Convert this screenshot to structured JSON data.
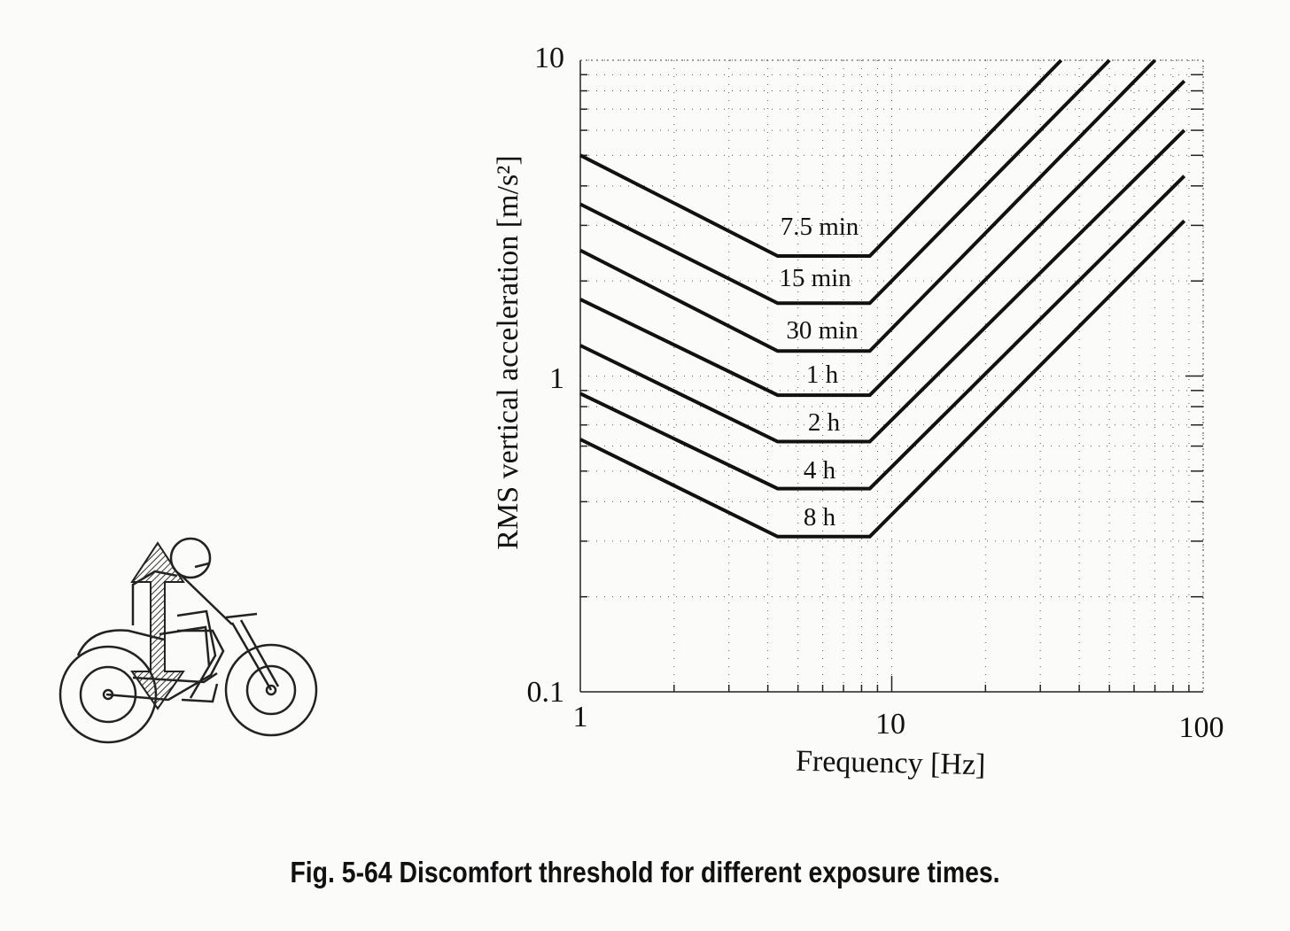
{
  "caption": "Fig. 5-64 Discomfort threshold for different exposure times.",
  "chart_data": {
    "type": "line",
    "title": "",
    "xlabel": "Frequency [Hz]",
    "ylabel": "RMS vertical acceleration [m/s²]",
    "xscale": "log",
    "yscale": "log",
    "xlim": [
      1,
      100
    ],
    "ylim": [
      0.1,
      10
    ],
    "xticks": [
      1,
      10,
      100
    ],
    "yticks": [
      0.1,
      1,
      10
    ],
    "xtick_labels": [
      "1",
      "10",
      "100"
    ],
    "ytick_labels": [
      "0.1",
      "1",
      "10"
    ],
    "grid": true,
    "legend": "none",
    "series": [
      {
        "name": "7.5 min",
        "x": [
          1,
          4.3,
          8.5,
          35
        ],
        "y": [
          5.0,
          2.4,
          2.4,
          10
        ]
      },
      {
        "name": "15 min",
        "x": [
          1,
          4.3,
          8.5,
          50
        ],
        "y": [
          3.5,
          1.7,
          1.7,
          10
        ]
      },
      {
        "name": "30 min",
        "x": [
          1,
          4.3,
          8.5,
          70
        ],
        "y": [
          2.5,
          1.2,
          1.2,
          10
        ]
      },
      {
        "name": "1 h",
        "x": [
          1,
          4.3,
          8.5,
          87
        ],
        "y": [
          1.75,
          0.87,
          0.87,
          8.6
        ]
      },
      {
        "name": "2 h",
        "x": [
          1,
          4.3,
          8.5,
          87
        ],
        "y": [
          1.25,
          0.62,
          0.62,
          6.0
        ]
      },
      {
        "name": "4 h",
        "x": [
          1,
          4.3,
          8.5,
          87
        ],
        "y": [
          0.88,
          0.44,
          0.44,
          4.3
        ]
      },
      {
        "name": "8 h",
        "x": [
          1,
          4.3,
          8.5,
          87
        ],
        "y": [
          0.63,
          0.31,
          0.31,
          3.1
        ]
      }
    ]
  }
}
